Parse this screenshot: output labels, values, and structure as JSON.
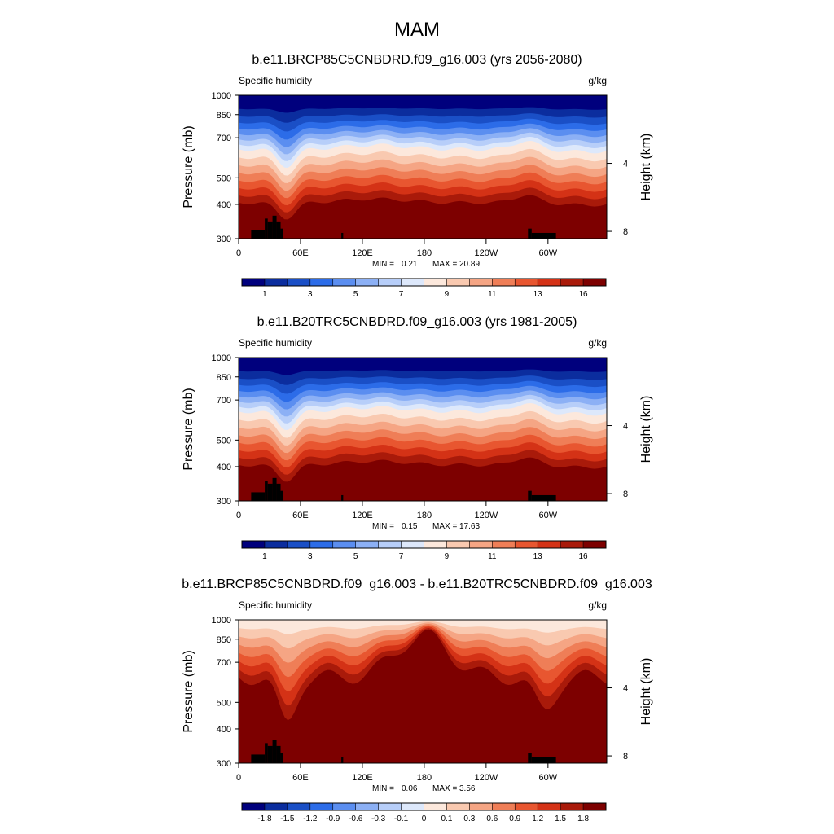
{
  "figure": {
    "title": "MAM"
  },
  "chart_data": [
    {
      "type": "heatmap",
      "title": "b.e11.BRCP85C5CNBDRD.f09_g16.003 (yrs 2056-2080)",
      "left_label": "Specific humidity",
      "right_label": "g/kg",
      "ylabel": "Pressure (mb)",
      "y2label": "Height (km)",
      "x_ticks": [
        "0",
        "60E",
        "120E",
        "180",
        "120W",
        "60W"
      ],
      "x_tick_values": [
        0,
        60,
        120,
        180,
        240,
        300
      ],
      "xlim": [
        0,
        357
      ],
      "y_ticks": [
        "300",
        "400",
        "500",
        "700",
        "850",
        "1000"
      ],
      "y_tick_values": [
        300,
        400,
        500,
        700,
        850,
        1000
      ],
      "ylim": [
        1000,
        300
      ],
      "y_scale": "log",
      "y2_ticks": [
        "8",
        "4"
      ],
      "y2_tick_values": [
        8,
        4
      ],
      "min_label": "MIN = ",
      "min_value": "0.21",
      "max_label": "MAX = ",
      "max_value": "20.89",
      "colorbar_labels": [
        "1",
        "3",
        "5",
        "7",
        "9",
        "11",
        "13",
        "16"
      ],
      "colorbar_label_index": [
        0,
        2,
        4,
        6,
        8,
        10,
        12,
        14
      ],
      "colorbar_colors": [
        "#00007d",
        "#0b2d9e",
        "#1a4fc6",
        "#2c6ce8",
        "#5b8ef0",
        "#8cb0f5",
        "#b7cef9",
        "#dde8fb",
        "#fce8dc",
        "#f9c9b0",
        "#f5a584",
        "#ef7e57",
        "#e85630",
        "#d43216",
        "#a91a0a",
        "#7d0000"
      ],
      "topography_color": "#000000",
      "grid": false,
      "legend": "bottom"
    },
    {
      "type": "heatmap",
      "title": "b.e11.B20TRC5CNBDRD.f09_g16.003 (yrs 1981-2005)",
      "left_label": "Specific humidity",
      "right_label": "g/kg",
      "ylabel": "Pressure (mb)",
      "y2label": "Height (km)",
      "x_ticks": [
        "0",
        "60E",
        "120E",
        "180",
        "120W",
        "60W"
      ],
      "x_tick_values": [
        0,
        60,
        120,
        180,
        240,
        300
      ],
      "xlim": [
        0,
        357
      ],
      "y_ticks": [
        "300",
        "400",
        "500",
        "700",
        "850",
        "1000"
      ],
      "y_tick_values": [
        300,
        400,
        500,
        700,
        850,
        1000
      ],
      "ylim": [
        1000,
        300
      ],
      "y_scale": "log",
      "y2_ticks": [
        "8",
        "4"
      ],
      "y2_tick_values": [
        8,
        4
      ],
      "min_label": "MIN = ",
      "min_value": "0.15",
      "max_label": "MAX = ",
      "max_value": "17.63",
      "colorbar_labels": [
        "1",
        "3",
        "5",
        "7",
        "9",
        "11",
        "13",
        "16"
      ],
      "colorbar_label_index": [
        0,
        2,
        4,
        6,
        8,
        10,
        12,
        14
      ],
      "colorbar_colors": [
        "#00007d",
        "#0b2d9e",
        "#1a4fc6",
        "#2c6ce8",
        "#5b8ef0",
        "#8cb0f5",
        "#b7cef9",
        "#dde8fb",
        "#fce8dc",
        "#f9c9b0",
        "#f5a584",
        "#ef7e57",
        "#e85630",
        "#d43216",
        "#a91a0a",
        "#7d0000"
      ],
      "topography_color": "#000000",
      "grid": false,
      "legend": "bottom"
    },
    {
      "type": "heatmap",
      "title": "b.e11.BRCP85C5CNBDRD.f09_g16.003 - b.e11.B20TRC5CNBDRD.f09_g16.003",
      "left_label": "Specific humidity",
      "right_label": "g/kg",
      "ylabel": "Pressure (mb)",
      "y2label": "Height (km)",
      "x_ticks": [
        "0",
        "60E",
        "120E",
        "180",
        "120W",
        "60W"
      ],
      "x_tick_values": [
        0,
        60,
        120,
        180,
        240,
        300
      ],
      "xlim": [
        0,
        357
      ],
      "y_ticks": [
        "300",
        "400",
        "500",
        "700",
        "850",
        "1000"
      ],
      "y_tick_values": [
        300,
        400,
        500,
        700,
        850,
        1000
      ],
      "ylim": [
        1000,
        300
      ],
      "y_scale": "log",
      "y2_ticks": [
        "8",
        "4"
      ],
      "y2_tick_values": [
        8,
        4
      ],
      "min_label": "MIN = ",
      "min_value": "0.06",
      "max_label": "MAX = ",
      "max_value": "3.56",
      "colorbar_labels": [
        "-1.8",
        "-1.5",
        "-1.2",
        "-0.9",
        "-0.6",
        "-0.3",
        "-0.1",
        "0",
        "0.1",
        "0.3",
        "0.6",
        "0.9",
        "1.2",
        "1.5",
        "1.8"
      ],
      "colorbar_label_index": [
        0,
        1,
        2,
        3,
        4,
        5,
        6,
        7,
        8,
        9,
        10,
        11,
        12,
        13,
        14
      ],
      "colorbar_colors": [
        "#00007d",
        "#0b2d9e",
        "#1a4fc6",
        "#2c6ce8",
        "#5b8ef0",
        "#8cb0f5",
        "#b7cef9",
        "#dde8fb",
        "#fce8dc",
        "#f9c9b0",
        "#f5a584",
        "#ef7e57",
        "#e85630",
        "#d43216",
        "#a91a0a",
        "#7d0000"
      ],
      "topography_color": "#000000",
      "grid": false,
      "legend": "bottom"
    }
  ]
}
